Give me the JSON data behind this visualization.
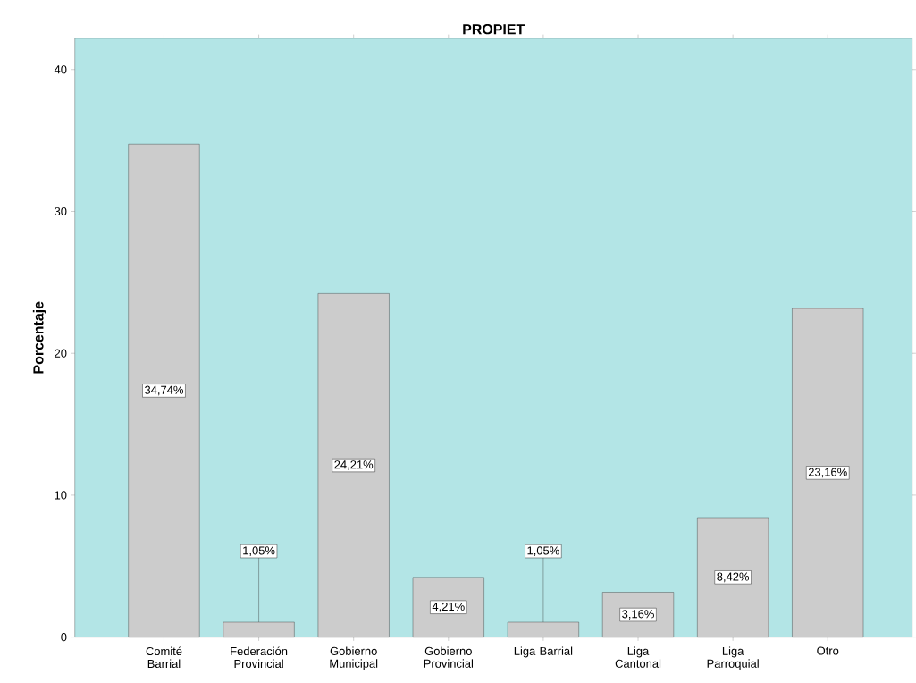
{
  "chart_data": {
    "type": "bar",
    "title": "PROPIET",
    "ylabel": "Porcentaje",
    "categories": [
      "Comité Barrial",
      "Federación Provincial",
      "Gobierno Municipal",
      "Gobierno Provincial",
      "Liga Barrial",
      "Liga Cantonal",
      "Liga Parroquial",
      "Otro"
    ],
    "values": [
      34.74,
      1.05,
      24.21,
      4.21,
      1.05,
      3.16,
      8.42,
      23.16
    ],
    "value_labels": [
      "34,74%",
      "1,05%",
      "24,21%",
      "4,21%",
      "1,05%",
      "3,16%",
      "8,42%",
      "23,16%"
    ],
    "color": "#cccccc",
    "ylim": [
      0,
      42.2
    ],
    "yticks": [
      0,
      10,
      20,
      30,
      40
    ]
  }
}
